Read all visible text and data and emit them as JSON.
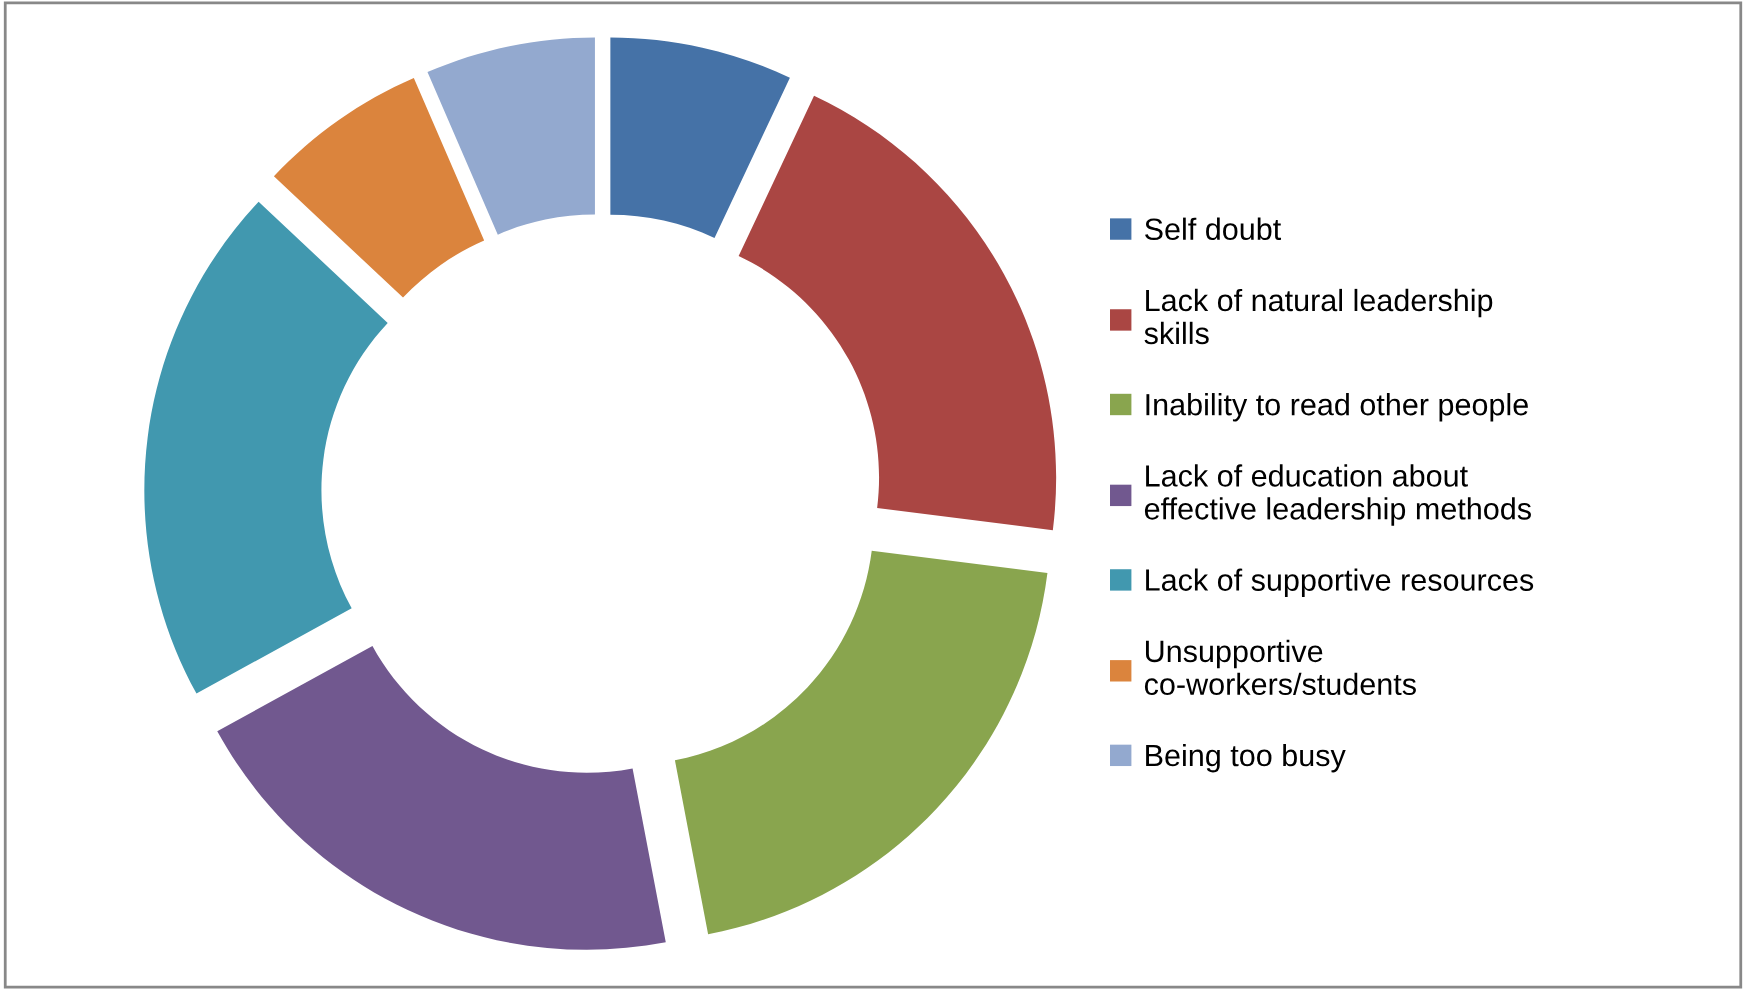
{
  "chart_data": {
    "type": "donut",
    "categories": [
      "Self doubt",
      "Lack of natural leadership skills",
      "Inability to read other people",
      "Lack of education about effective leadership methods",
      "Lack of supportive resources",
      "Unsupportive co-workers/students",
      "Being too busy"
    ],
    "values": [
      7,
      20,
      20,
      20,
      20,
      6.5,
      6.5
    ],
    "colors": [
      "#4572a7",
      "#aa4643",
      "#89a54e",
      "#71588f",
      "#4198af",
      "#db843d",
      "#93a9cf"
    ],
    "legend": "right"
  }
}
